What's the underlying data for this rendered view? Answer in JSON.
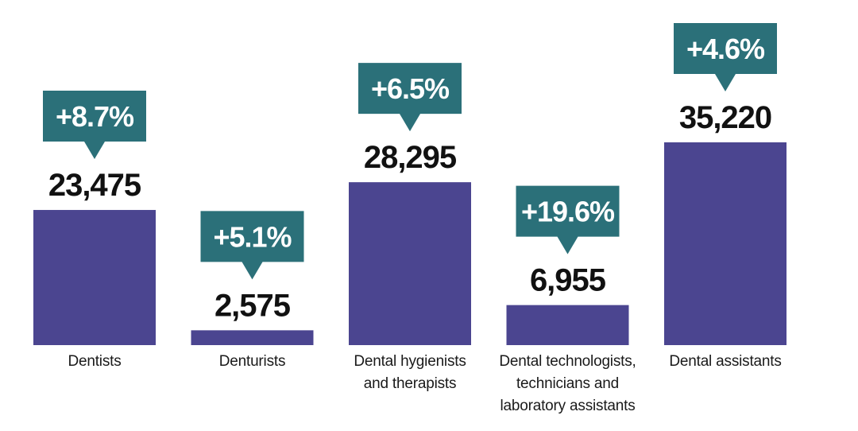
{
  "chart_data": {
    "type": "bar",
    "title": "",
    "xlabel": "",
    "ylabel": "",
    "ylim": [
      0,
      35220
    ],
    "categories": [
      [
        "Dentists"
      ],
      [
        "Denturists"
      ],
      [
        "Dental hygienists",
        "and therapists"
      ],
      [
        "Dental technologists,",
        "technicians and",
        "laboratory assistants"
      ],
      [
        "Dental assistants"
      ]
    ],
    "values": [
      23475,
      2575,
      28295,
      6955,
      35220
    ],
    "value_labels": [
      "23,475",
      "2,575",
      "28,295",
      "6,955",
      "35,220"
    ],
    "change_labels": [
      "+8.7%",
      "+5.1%",
      "+6.5%",
      "+19.6%",
      "+4.6%"
    ],
    "colors": {
      "bar": "#4b4590",
      "badge": "#2b7079",
      "badge_text": "#ffffff",
      "value_text": "#111111",
      "label_text": "#1a1a1a"
    }
  }
}
